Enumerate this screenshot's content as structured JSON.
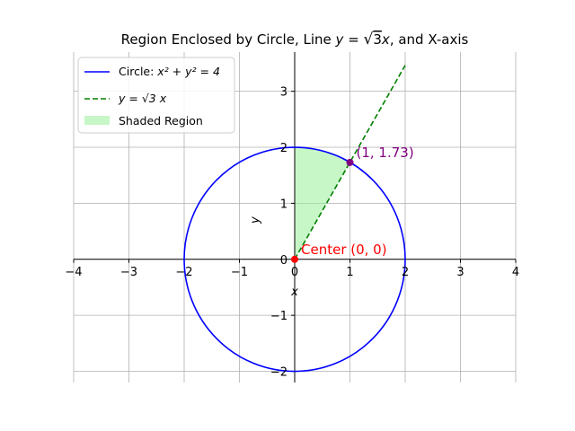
{
  "chart_data": {
    "type": "line",
    "title": "Region Enclosed by Circle, Line y = √3 x, and X-axis",
    "title_parts": {
      "prefix": "Region Enclosed by Circle, Line ",
      "y": "y",
      "eq": " = ",
      "sqrt_arg": "3",
      "x": "x",
      "suffix": ", and X-axis"
    },
    "xlabel": "x",
    "ylabel": "y",
    "xlim": [
      -4,
      4
    ],
    "ylim": [
      -2.2,
      3.7
    ],
    "xticks": [
      -4,
      -3,
      -2,
      -1,
      0,
      1,
      2,
      3,
      4
    ],
    "yticks": [
      -2,
      -1,
      0,
      1,
      2,
      3
    ],
    "grid": true,
    "legend_location": "upper-left",
    "series": [
      {
        "name": "Circle: x² + y² = 4",
        "kind": "circle",
        "center": [
          0,
          0
        ],
        "radius": 2,
        "color": "#0000ff",
        "style": "solid"
      },
      {
        "name": "y = √3 x",
        "kind": "line",
        "x": [
          0,
          2
        ],
        "y": [
          0,
          3.4641
        ],
        "color": "#008000",
        "style": "dashed"
      },
      {
        "name": "Shaded Region",
        "kind": "fill",
        "boundary": "between x = 0, the line y = √3 x and the circle, from (0, 0) via (1, 1.73) to (0, 2)",
        "color": "#90ee90"
      }
    ],
    "legend": [
      {
        "label_prefix": "Circle: ",
        "math": "x² + y² = 4",
        "color": "#0000ff",
        "kind": "solid"
      },
      {
        "label_prefix": "",
        "math": "y = √3 x",
        "color": "#008000",
        "kind": "dashed"
      },
      {
        "label_prefix": "Shaded Region",
        "math": "",
        "color": "#90ee90",
        "kind": "patch"
      }
    ],
    "points": [
      {
        "x": 0,
        "y": 0,
        "color": "#ff0000",
        "label": "Center (0, 0)",
        "label_color": "#ff0000"
      },
      {
        "x": 1,
        "y": 1.73,
        "color": "#800080",
        "label": "(1, 1.73)",
        "label_color": "#800080"
      }
    ]
  }
}
